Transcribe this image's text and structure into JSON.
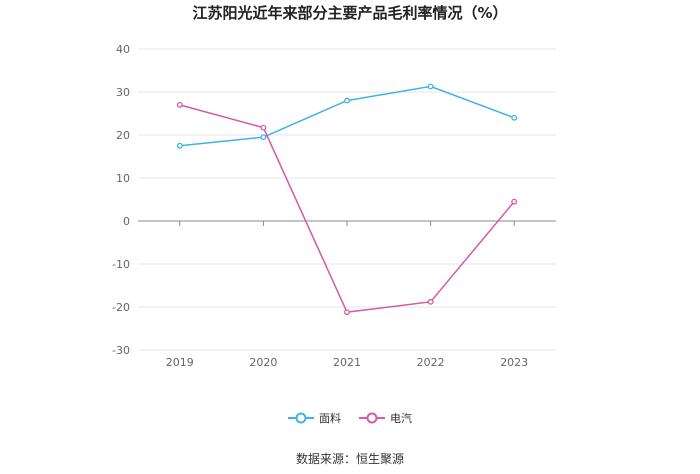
{
  "chart_data": {
    "type": "line",
    "title": "江苏阳光近年来部分主要产品毛利率情况（%）",
    "categories": [
      "2019",
      "2020",
      "2021",
      "2022",
      "2023"
    ],
    "ylim": [
      -30,
      40
    ],
    "yticks": [
      "40",
      "30",
      "20",
      "10",
      "0",
      "-10",
      "-20",
      "-30"
    ],
    "grid": true,
    "legend_position": "bottom",
    "series": [
      {
        "name": "面料",
        "color": "#3fb3e6",
        "values": [
          17.5,
          19.5,
          28,
          31.3,
          24
        ]
      },
      {
        "name": "电汽",
        "color": "#d45aa8",
        "values": [
          27,
          21.7,
          -21.2,
          -18.8,
          4.5
        ]
      }
    ]
  },
  "source": "数据来源：恒生聚源"
}
